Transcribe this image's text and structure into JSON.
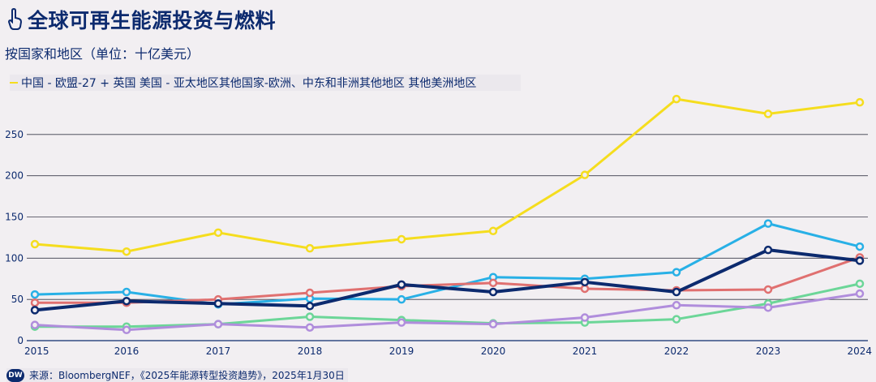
{
  "header": {
    "title": "全球可再生能源投资与燃料",
    "subtitle": "按国家和地区（单位：十亿美元）",
    "icon": "hand-pointer-icon"
  },
  "legend": {
    "text": "中国 - 欧盟-27 + 英国 美国 - 亚太地区其他国家-欧洲、中东和非洲其他地区 其他美洲地区"
  },
  "source": {
    "logo": "DW",
    "text": "来源：BloombergNEF，《2025年能源转型投资趋势》，2025年1月30日"
  },
  "chart_data": {
    "type": "line",
    "x": [
      2015,
      2016,
      2017,
      2018,
      2019,
      2020,
      2021,
      2022,
      2023,
      2024
    ],
    "ylim": [
      0,
      300
    ],
    "yticks": [
      0,
      50,
      100,
      150,
      200,
      250
    ],
    "grid": true,
    "series": [
      {
        "name": "中国",
        "color": "#f5dd1e",
        "values": [
          117,
          108,
          131,
          112,
          123,
          133,
          201,
          293,
          275,
          289
        ]
      },
      {
        "color": "#28b0e6",
        "values": [
          56,
          59,
          44,
          51,
          50,
          77,
          75,
          83,
          142,
          114
        ]
      },
      {
        "color": "#e07070",
        "values": [
          46,
          46,
          50,
          58,
          66,
          70,
          63,
          61,
          62,
          101
        ]
      },
      {
        "color": "#6cd698",
        "values": [
          17,
          17,
          20,
          29,
          25,
          21,
          22,
          26,
          45,
          69
        ]
      },
      {
        "color": "#b08ddc",
        "values": [
          19,
          13,
          20,
          16,
          22,
          20,
          28,
          43,
          40,
          57
        ]
      },
      {
        "color": "#0c2a6e",
        "values": [
          37,
          48,
          45,
          42,
          68,
          59,
          71,
          59,
          110,
          97
        ]
      }
    ]
  }
}
